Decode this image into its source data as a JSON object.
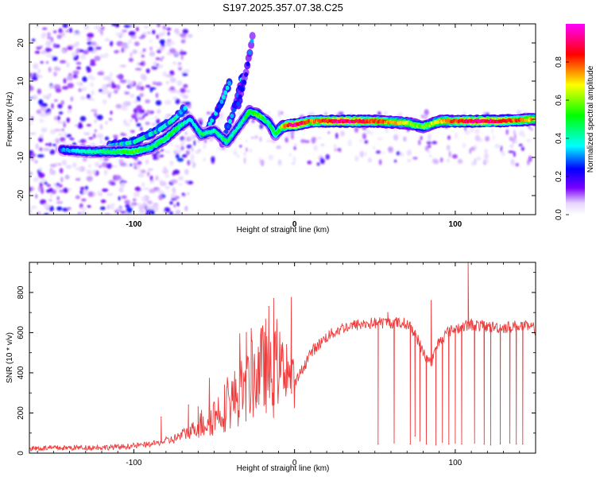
{
  "title": "S197.2025.357.07.38.C25",
  "chart_data": [
    {
      "type": "heatmap",
      "name": "spectrogram",
      "xlabel": "Height of straight line (km)",
      "ylabel": "Frequency (Hz)",
      "xlim": [
        -165,
        150
      ],
      "ylim": [
        -25,
        25
      ],
      "xticks": [
        -100,
        0,
        100
      ],
      "yticks": [
        -20,
        -10,
        0,
        10,
        20
      ],
      "colorbar": {
        "label": "Normalized spectral amplitude",
        "range": [
          0.0,
          1.0
        ],
        "ticks": [
          0.0,
          0.2,
          0.4,
          0.6,
          0.8
        ],
        "colors": [
          "#ffffff",
          "#7a00ff",
          "#0000ff",
          "#00ffff",
          "#00ff00",
          "#ffff00",
          "#ff0000",
          "#ff00ff"
        ]
      },
      "ridge": {
        "x": [
          -145,
          -130,
          -115,
          -100,
          -90,
          -80,
          -72,
          -65,
          -58,
          -50,
          -42,
          -35,
          -28,
          -22,
          -16,
          -12,
          -8,
          -4,
          0,
          10,
          30,
          50,
          70,
          80,
          90,
          100,
          110,
          125,
          150
        ],
        "y": [
          -8,
          -8.5,
          -8.5,
          -8.5,
          -7.5,
          -5,
          -2,
          0,
          -4,
          -3,
          -6,
          -2,
          2,
          1,
          -1,
          -4,
          -2,
          -1.5,
          -1.5,
          -0.5,
          -0.5,
          -0.5,
          -1,
          -2,
          -0.5,
          -0.5,
          -0.5,
          -0.5,
          0
        ],
        "amplitude": [
          0.3,
          0.4,
          0.45,
          0.55,
          0.45,
          0.5,
          0.45,
          0.35,
          0.45,
          0.4,
          0.45,
          0.4,
          0.5,
          0.55,
          0.45,
          0.5,
          0.6,
          0.9,
          0.95,
          0.75,
          0.95,
          0.8,
          0.65,
          0.55,
          0.7,
          0.8,
          0.9,
          0.9,
          0.7
        ]
      },
      "branches": [
        {
          "x": [
            -115,
            -100,
            -85,
            -75,
            -68
          ],
          "y": [
            -7,
            -6,
            -3,
            0,
            3
          ],
          "amplitude": 0.35
        },
        {
          "x": [
            -55,
            -47,
            -40
          ],
          "y": [
            -3,
            3,
            10
          ],
          "amplitude": 0.3
        },
        {
          "x": [
            -45,
            -38,
            -32
          ],
          "y": [
            -6,
            2,
            12
          ],
          "amplitude": 0.3
        },
        {
          "x": [
            -35,
            -30,
            -26
          ],
          "y": [
            4,
            12,
            22
          ],
          "amplitude": 0.25
        }
      ]
    },
    {
      "type": "line",
      "name": "snr",
      "xlabel": "Height of straight line (km)",
      "ylabel": "SNR (10 * v/v)",
      "xlim": [
        -165,
        150
      ],
      "ylim": [
        0,
        950
      ],
      "xticks": [
        -100,
        0,
        100
      ],
      "yticks": [
        0,
        200,
        400,
        600,
        800
      ],
      "color": "#ef3b3b",
      "series": [
        {
          "name": "SNR",
          "x": [
            -165,
            -150,
            -130,
            -110,
            -95,
            -85,
            -75,
            -65,
            -55,
            -45,
            -35,
            -28,
            -22,
            -18,
            -14,
            -10,
            -8,
            -6,
            -4,
            -2,
            0,
            5,
            10,
            20,
            30,
            40,
            50,
            60,
            70,
            75,
            80,
            85,
            90,
            95,
            100,
            110,
            120,
            130,
            140,
            150
          ],
          "y": [
            25,
            25,
            28,
            30,
            40,
            50,
            70,
            110,
            160,
            220,
            290,
            350,
            400,
            440,
            350,
            470,
            430,
            420,
            400,
            370,
            340,
            420,
            500,
            580,
            625,
            640,
            648,
            650,
            645,
            600,
            500,
            450,
            560,
            600,
            620,
            640,
            630,
            625,
            635,
            620
          ],
          "spikes": [
            {
              "x": -83,
              "y": 180
            },
            {
              "x": -66,
              "y": 240
            },
            {
              "x": -60,
              "y": 230
            },
            {
              "x": -42,
              "y": 330
            },
            {
              "x": -30,
              "y": 600
            },
            {
              "x": -27,
              "y": 620
            },
            {
              "x": -22,
              "y": 500
            },
            {
              "x": -16,
              "y": 730
            },
            {
              "x": -13,
              "y": 770
            },
            {
              "x": -5,
              "y": 540
            },
            {
              "x": -2,
              "y": 775
            },
            {
              "x": 58,
              "y": 700
            },
            {
              "x": 85,
              "y": 760
            },
            {
              "x": 108,
              "y": 950
            }
          ],
          "dips": [
            {
              "x": 52,
              "y": 45
            },
            {
              "x": 62,
              "y": 50
            },
            {
              "x": 72,
              "y": 45
            },
            {
              "x": 75,
              "y": 85
            },
            {
              "x": 78,
              "y": 60
            },
            {
              "x": 82,
              "y": 45
            },
            {
              "x": 88,
              "y": 40
            },
            {
              "x": 92,
              "y": 55
            },
            {
              "x": 96,
              "y": 45
            },
            {
              "x": 100,
              "y": 50
            },
            {
              "x": 104,
              "y": 45
            },
            {
              "x": 112,
              "y": 50
            },
            {
              "x": 118,
              "y": 45
            },
            {
              "x": 122,
              "y": 40
            },
            {
              "x": 128,
              "y": 45
            },
            {
              "x": 134,
              "y": 50
            },
            {
              "x": 138,
              "y": 45
            },
            {
              "x": 142,
              "y": 45
            }
          ]
        }
      ]
    }
  ]
}
